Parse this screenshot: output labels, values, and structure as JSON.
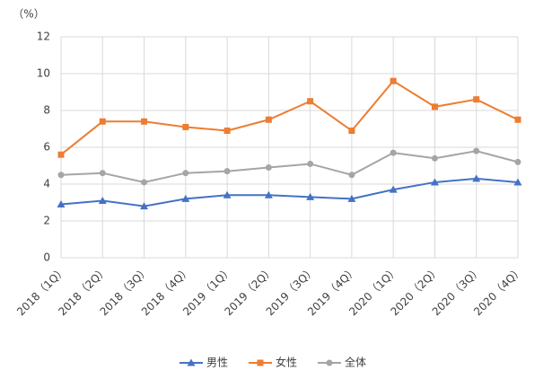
{
  "chart_data": {
    "type": "line",
    "unit_label": "（%）",
    "categories": [
      "2018（1Q）",
      "2018（2Q）",
      "2018（3Q）",
      "2018（4Q）",
      "2019（1Q）",
      "2019（2Q）",
      "2019（3Q）",
      "2019（4Q）",
      "2020（1Q）",
      "2020（2Q）",
      "2020（3Q）",
      "2020（4Q）"
    ],
    "series": [
      {
        "name": "男性",
        "color": "#4472c4",
        "marker": "triangle",
        "values": [
          2.9,
          3.1,
          2.8,
          3.2,
          3.4,
          3.4,
          3.3,
          3.2,
          3.7,
          4.1,
          4.3,
          4.1
        ]
      },
      {
        "name": "女性",
        "color": "#ed7d31",
        "marker": "square",
        "values": [
          5.6,
          7.4,
          7.4,
          7.1,
          6.9,
          7.5,
          8.5,
          6.9,
          9.6,
          8.2,
          8.6,
          7.5
        ]
      },
      {
        "name": "全体",
        "color": "#a5a5a5",
        "marker": "circle",
        "values": [
          4.5,
          4.6,
          4.1,
          4.6,
          4.7,
          4.9,
          5.1,
          4.5,
          5.7,
          5.4,
          5.8,
          5.2
        ]
      }
    ],
    "ylim": [
      0,
      12
    ],
    "yticks": [
      0,
      2,
      4,
      6,
      8,
      10,
      12
    ],
    "grid": true,
    "legend": "bottom"
  }
}
